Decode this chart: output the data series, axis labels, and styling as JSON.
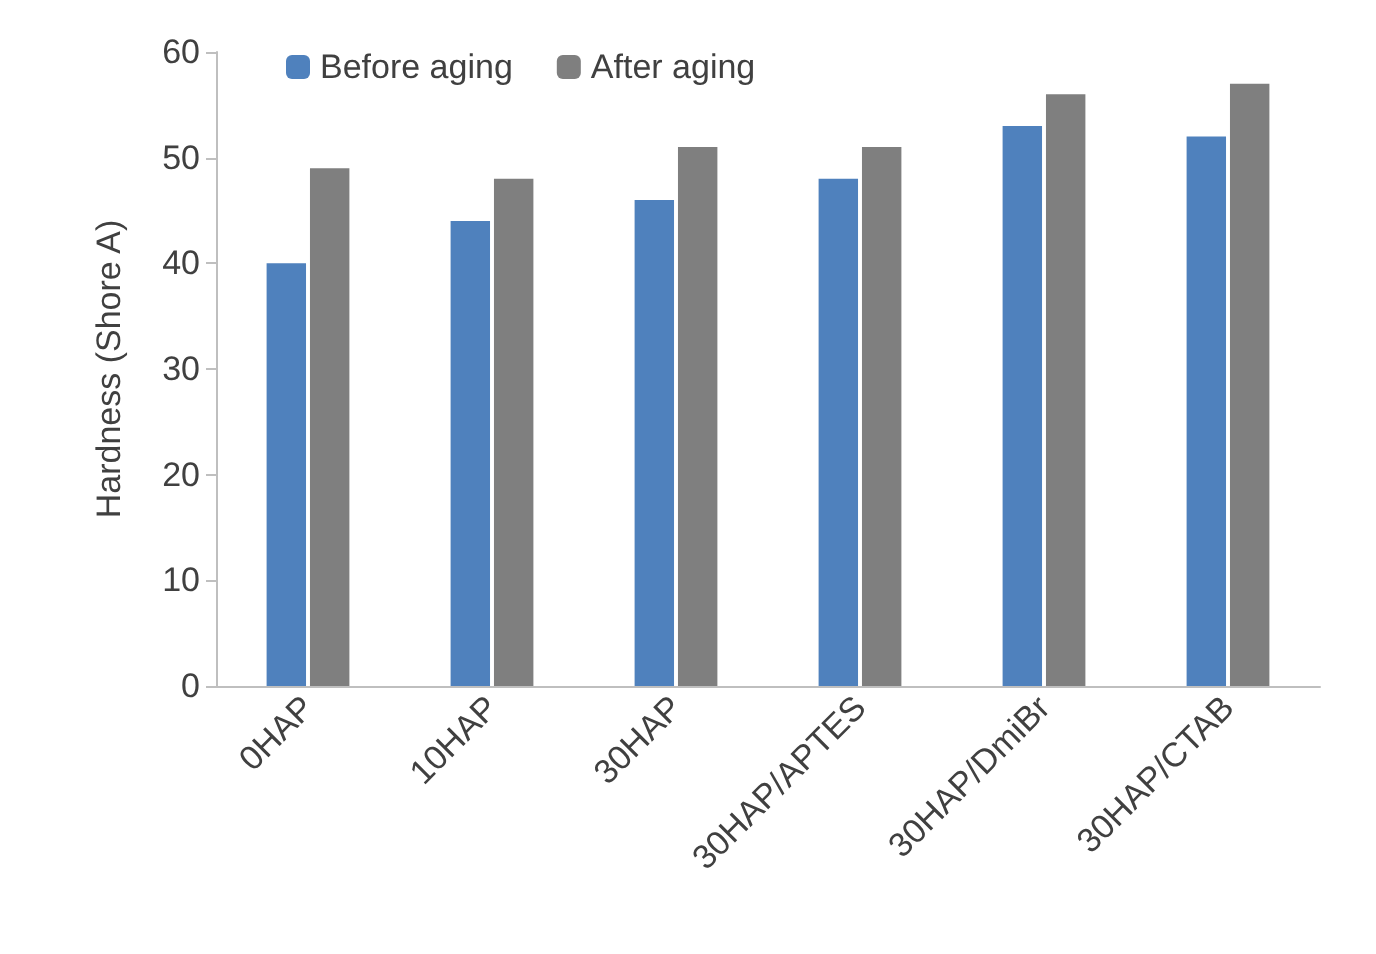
{
  "chart_data": {
    "type": "bar",
    "ylabel": "Hardness (Shore A)",
    "categories": [
      "0HAP",
      "10HAP",
      "30HAP",
      "30HAP/APTES",
      "30HAP/DmiBr",
      "30HAP/CTAB"
    ],
    "series": [
      {
        "name": "Before aging",
        "color": "#4f81bd",
        "values": [
          40,
          44,
          46,
          48,
          53,
          52
        ]
      },
      {
        "name": "After aging",
        "color": "#7f7f7f",
        "values": [
          49,
          48,
          51,
          51,
          56,
          57
        ]
      }
    ],
    "ylim": [
      0,
      60
    ],
    "yticks": [
      0,
      10,
      20,
      30,
      40,
      50,
      60
    ],
    "grid": false,
    "legend": "top left"
  }
}
